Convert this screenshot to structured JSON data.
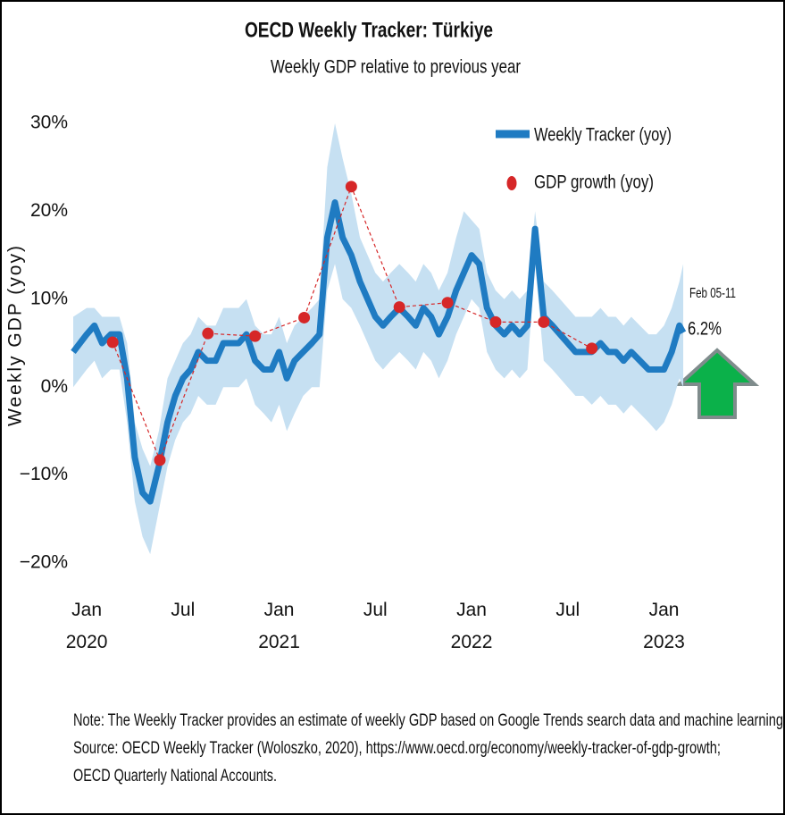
{
  "chart_data": {
    "type": "line",
    "title": "OECD Weekly Tracker: Türkiye",
    "subtitle": "Weekly GDP relative to previous year",
    "ylabel": "Weekly GDP (yoy)",
    "xlim": [
      2019.93,
      2023.4
    ],
    "ylim": [
      -22,
      32
    ],
    "xticks": [
      {
        "value": 2020,
        "label": "Jan 2020"
      },
      {
        "value": 2020.5,
        "label": "Jul"
      },
      {
        "value": 2021,
        "label": "Jan 2021"
      },
      {
        "value": 2021.5,
        "label": "Jul"
      },
      {
        "value": 2022,
        "label": "Jan 2022"
      },
      {
        "value": 2022.5,
        "label": "Jul"
      },
      {
        "value": 2023,
        "label": "Jan 2023"
      }
    ],
    "yticks": [
      {
        "value": -20,
        "label": "−20%"
      },
      {
        "value": -10,
        "label": "−10%"
      },
      {
        "value": 0,
        "label": "0%"
      },
      {
        "value": 10,
        "label": "10%"
      },
      {
        "value": 20,
        "label": "20%"
      },
      {
        "value": 30,
        "label": "30%"
      }
    ],
    "series": [
      {
        "name": "Weekly Tracker (yoy)",
        "type": "line",
        "color": "#1f7bc2",
        "band_color": "#c6e0f2",
        "x": [
          2019.93,
          2020.0,
          2020.04,
          2020.08,
          2020.125,
          2020.17,
          2020.21,
          2020.25,
          2020.29,
          2020.33,
          2020.375,
          2020.42,
          2020.46,
          2020.5,
          2020.54,
          2020.58,
          2020.625,
          2020.67,
          2020.71,
          2020.75,
          2020.79,
          2020.83,
          2020.875,
          2020.92,
          2020.96,
          2021.0,
          2021.04,
          2021.08,
          2021.125,
          2021.17,
          2021.21,
          2021.25,
          2021.29,
          2021.33,
          2021.375,
          2021.42,
          2021.46,
          2021.5,
          2021.54,
          2021.58,
          2021.625,
          2021.67,
          2021.71,
          2021.75,
          2021.79,
          2021.83,
          2021.875,
          2021.92,
          2021.96,
          2022.0,
          2022.04,
          2022.08,
          2022.125,
          2022.17,
          2022.21,
          2022.25,
          2022.29,
          2022.33,
          2022.375,
          2022.42,
          2022.46,
          2022.5,
          2022.54,
          2022.58,
          2022.625,
          2022.67,
          2022.71,
          2022.75,
          2022.79,
          2022.83,
          2022.875,
          2022.92,
          2022.96,
          2023.0,
          2023.04,
          2023.08,
          2023.1
        ],
        "values": [
          4,
          6,
          7,
          5,
          6,
          6,
          1,
          -8,
          -12,
          -13,
          -9,
          -4,
          -1,
          1,
          2,
          4,
          3,
          3,
          5,
          5,
          5,
          6,
          3,
          2,
          2,
          4,
          1,
          3,
          4,
          5,
          6,
          17,
          21,
          17,
          15,
          12,
          10,
          8,
          7,
          8,
          9,
          8,
          7,
          9,
          8,
          6,
          8,
          11,
          13,
          15,
          14,
          9,
          7,
          6,
          7,
          6,
          7,
          18,
          8,
          7,
          6,
          5,
          4,
          4,
          4,
          5,
          4,
          4,
          3,
          4,
          3,
          2,
          2,
          2,
          4,
          7,
          6.2
        ],
        "upper": [
          8,
          9,
          9,
          8,
          8,
          8,
          5,
          -4,
          -7,
          -9,
          -5,
          1,
          3,
          5,
          6,
          8,
          7,
          7,
          9,
          9,
          9,
          10,
          7,
          6,
          6,
          8,
          5,
          7,
          8,
          9,
          10,
          25,
          30,
          26,
          22,
          17,
          15,
          13,
          12,
          13,
          14,
          13,
          12,
          14,
          13,
          11,
          13,
          17,
          20,
          19,
          18,
          13,
          11,
          10,
          11,
          10,
          11,
          20,
          12,
          11,
          10,
          9,
          8,
          8,
          8,
          9,
          8,
          8,
          7,
          8,
          7,
          6,
          6,
          7,
          9,
          12,
          14
        ],
        "lower": [
          0,
          2,
          3,
          1,
          2,
          2,
          -4,
          -13,
          -17,
          -19,
          -14,
          -9,
          -6,
          -4,
          -3,
          -1,
          -2,
          -2,
          0,
          0,
          0,
          1,
          -2,
          -3,
          -4,
          -2,
          -5,
          -3,
          -1,
          0,
          0,
          11,
          14,
          10,
          9,
          7,
          5,
          3,
          2,
          3,
          4,
          3,
          2,
          4,
          3,
          1,
          3,
          6,
          8,
          10,
          9,
          4,
          2,
          1,
          2,
          1,
          2,
          14,
          3,
          2,
          1,
          0,
          -1,
          -1,
          -2,
          -1,
          -2,
          -2,
          -3,
          -2,
          -3,
          -4,
          -5,
          -4,
          -2,
          1,
          0
        ]
      },
      {
        "name": "GDP growth (yoy)",
        "type": "scatter",
        "color": "#d62728",
        "x": [
          2020.135,
          2020.38,
          2020.63,
          2020.875,
          2021.13,
          2021.375,
          2021.625,
          2021.875,
          2022.125,
          2022.375,
          2022.625
        ],
        "values": [
          5.1,
          -8.3,
          6.1,
          5.8,
          7.9,
          22.8,
          9.1,
          9.6,
          7.4,
          7.4,
          4.4
        ]
      }
    ],
    "annotations": [
      "Feb 05-11",
      "6.2%"
    ]
  },
  "notes": [
    "Note: The Weekly Tracker provides an estimate of weekly GDP based on Google Trends search data and machine learning",
    "Source: OECD Weekly Tracker (Woloszko, 2020), https://www.oecd.org/economy/weekly-tracker-of-gdp-growth;",
    "OECD Quarterly National Accounts."
  ]
}
